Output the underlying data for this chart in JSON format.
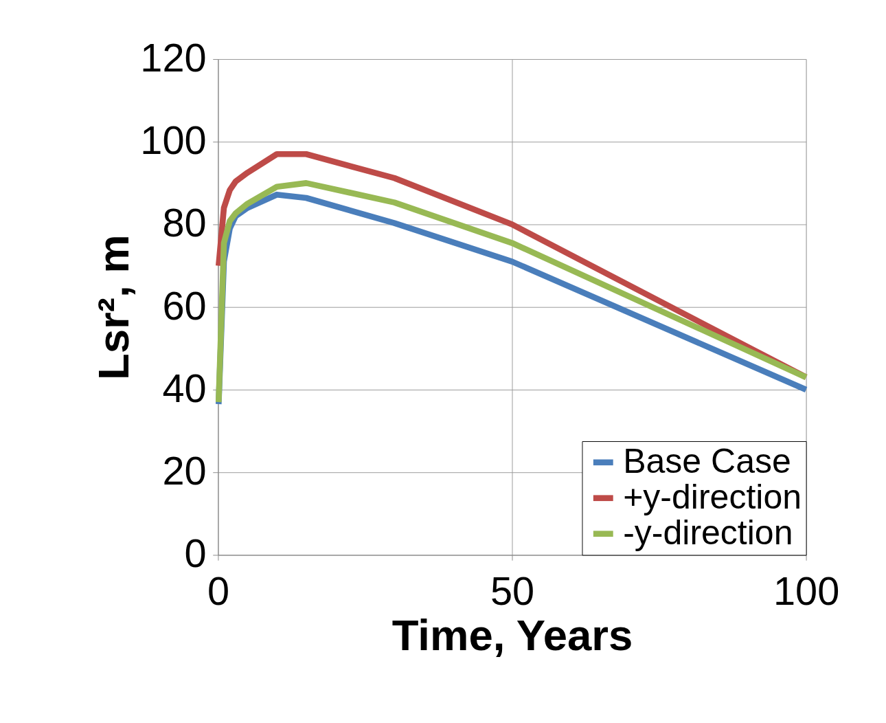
{
  "chart_data": {
    "type": "line",
    "xlabel": "Time, Years",
    "ylabel": "Lsr², m",
    "x": [
      0.1,
      1,
      2,
      3,
      5,
      10,
      15,
      30,
      50,
      100
    ],
    "series": [
      {
        "name": "Base Case",
        "color": "#4a7ebb",
        "values": [
          36.5,
          71,
          79,
          82,
          84,
          87.2,
          86.4,
          80.3,
          71,
          40
        ]
      },
      {
        "name": "+y-direction",
        "color": "#be4b48",
        "values": [
          70,
          84,
          88.3,
          90.4,
          92.5,
          97,
          97,
          91.2,
          80,
          43
        ]
      },
      {
        "name": "-y-direction",
        "color": "#98b954",
        "values": [
          37,
          75.5,
          80.8,
          82.7,
          85,
          89.1,
          90,
          85.3,
          75.5,
          43
        ]
      }
    ],
    "xlim": [
      0,
      100
    ],
    "xticks": [
      0,
      50,
      100
    ],
    "ylim": [
      0,
      120
    ],
    "yticks": [
      0,
      20,
      40,
      60,
      80,
      100,
      120
    ],
    "grid": true,
    "legend": "bottom right",
    "marker": "none",
    "line_style": "solid"
  }
}
